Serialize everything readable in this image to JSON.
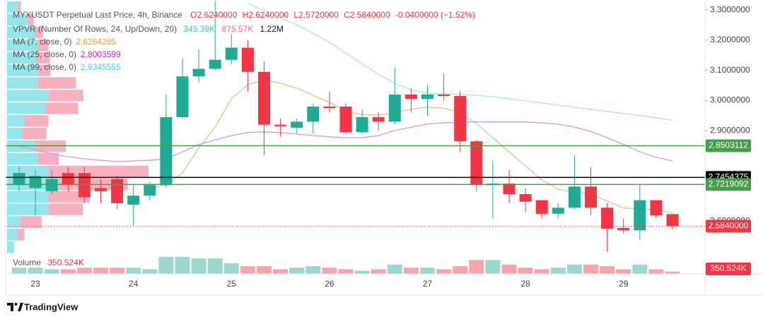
{
  "chart_data": {
    "type": "candlestick",
    "title": "MYXUSDT Perpetual Last Price, 4h, Binance",
    "ohlc_labels": [
      "O2.6240000",
      "H2.6240000",
      "L2.5720000",
      "C2.5840000",
      "-0.0400000 (−1.52%)"
    ],
    "categories": [
      null,
      "23",
      null,
      null,
      null,
      null,
      null,
      "24",
      null,
      null,
      null,
      null,
      null,
      "25",
      null,
      null,
      null,
      null,
      null,
      "26",
      null,
      null,
      null,
      null,
      null,
      "27",
      null,
      null,
      null,
      null,
      null,
      "28",
      null,
      null,
      null,
      null,
      null,
      "29",
      null,
      null,
      null
    ],
    "open": [
      2.72,
      2.71,
      2.7,
      2.76,
      2.76,
      2.71,
      2.74,
      2.655,
      2.685,
      2.72,
      2.945,
      3.08,
      3.105,
      3.135,
      3.175,
      3.095,
      2.92,
      2.91,
      2.93,
      2.98,
      2.98,
      2.895,
      2.945,
      2.93,
      3.02,
      3.005,
      3.02,
      3.015,
      2.865,
      2.72,
      2.725,
      2.69,
      2.67,
      2.625,
      2.645,
      2.715,
      2.645,
      2.578,
      2.57,
      2.67,
      2.624
    ],
    "high": [
      2.78,
      2.77,
      2.77,
      2.78,
      2.78,
      2.74,
      2.75,
      2.72,
      2.73,
      3.02,
      3.14,
      3.17,
      3.33,
      3.22,
      3.2,
      3.13,
      2.94,
      2.94,
      2.99,
      3.03,
      2.99,
      2.97,
      2.96,
      3.11,
      3.04,
      3.05,
      3.09,
      3.03,
      2.87,
      2.8,
      2.77,
      2.71,
      2.67,
      2.66,
      2.82,
      2.78,
      2.66,
      2.61,
      2.72,
      2.67,
      2.624
    ],
    "low": [
      2.7,
      2.62,
      2.69,
      2.7,
      2.66,
      2.66,
      2.64,
      2.585,
      2.67,
      2.71,
      2.94,
      3.06,
      3.1,
      3.12,
      3.03,
      2.82,
      2.88,
      2.89,
      2.89,
      2.96,
      2.89,
      2.89,
      2.9,
      2.92,
      2.96,
      2.95,
      3.0,
      2.83,
      2.7,
      2.61,
      2.66,
      2.63,
      2.61,
      2.61,
      2.64,
      2.62,
      2.5,
      2.56,
      2.54,
      2.61,
      2.572
    ],
    "close": [
      2.76,
      2.75,
      2.74,
      2.72,
      2.68,
      2.7,
      2.66,
      2.685,
      2.72,
      2.945,
      3.08,
      3.105,
      3.135,
      3.175,
      3.095,
      2.92,
      2.915,
      2.93,
      2.98,
      2.975,
      2.895,
      2.945,
      2.93,
      3.02,
      3.005,
      3.02,
      3.015,
      2.865,
      2.72,
      2.725,
      2.69,
      2.665,
      2.625,
      2.645,
      2.715,
      2.645,
      2.575,
      2.57,
      2.67,
      2.62,
      2.584
    ],
    "up_color": "#22ab94",
    "down_color": "#f23645",
    "ylim": [
      2.426,
      3.333
    ],
    "yticks": [
      {
        "value": 3.3,
        "label": "3.3000000"
      },
      {
        "value": 3.2,
        "label": "3.2000000"
      },
      {
        "value": 3.1,
        "label": "3.1000000"
      },
      {
        "value": 3.0,
        "label": "3.0000000"
      },
      {
        "value": 2.9,
        "label": "2.9000000"
      },
      {
        "value": 2.6,
        "label": "2.6000000"
      }
    ],
    "grid": false,
    "volume": {
      "name": "Volume",
      "value_label": "350.524K",
      "values": [
        936,
        936,
        702,
        702,
        936,
        936,
        936,
        936,
        702,
        2574,
        2574,
        2340,
        2340,
        1638,
        1170,
        1170,
        702,
        936,
        1170,
        936,
        702,
        468,
        702,
        1404,
        936,
        936,
        702,
        1170,
        2106,
        2106,
        1404,
        936,
        702,
        936,
        1404,
        1404,
        1170,
        702,
        1404,
        702,
        350.524
      ]
    },
    "indicators": [
      {
        "name": "MA (7, close, 0)",
        "value_label": "2.6284285",
        "color": "#e8a33d",
        "line_color": "#e6c08a",
        "values": [
          null,
          null,
          null,
          null,
          null,
          null,
          null,
          null,
          2.707,
          2.721,
          2.76,
          2.842,
          2.912,
          3.006,
          3.052,
          3.069,
          3.057,
          3.041,
          3.017,
          2.994,
          2.964,
          2.954,
          2.952,
          2.959,
          2.971,
          2.978,
          2.975,
          2.959,
          2.924,
          2.877,
          2.83,
          2.784,
          2.737,
          2.707,
          2.695,
          2.69,
          2.667,
          2.644,
          2.641,
          2.639,
          2.628
        ]
      },
      {
        "name": "MA (25, close, 0)",
        "value_label": "2.8003599",
        "color": "#d41fd4",
        "line_color": "#dc95e2",
        "values": [
          2.849,
          2.837,
          2.823,
          2.814,
          2.807,
          2.802,
          2.798,
          2.8,
          2.802,
          2.807,
          2.83,
          2.854,
          2.87,
          2.884,
          2.894,
          2.896,
          2.894,
          2.889,
          2.884,
          2.88,
          2.877,
          2.877,
          2.884,
          2.901,
          2.912,
          2.922,
          2.926,
          2.929,
          2.929,
          2.929,
          2.929,
          2.929,
          2.926,
          2.922,
          2.912,
          2.898,
          2.877,
          2.854,
          2.83,
          2.812,
          2.8
        ]
      },
      {
        "name": "MA (99, close, 0)",
        "value_label": "2.9345555",
        "color": "#3fd6dc",
        "line_color": "#a9e7ee",
        "values": [
          null,
          null,
          null,
          null,
          null,
          null,
          null,
          null,
          null,
          null,
          null,
          null,
          null,
          null,
          3.321,
          3.298,
          3.274,
          3.251,
          3.223,
          3.193,
          3.158,
          3.122,
          3.087,
          3.057,
          3.036,
          3.024,
          3.022,
          3.02,
          3.017,
          3.013,
          3.006,
          2.999,
          2.992,
          2.985,
          2.978,
          2.971,
          2.964,
          2.957,
          2.95,
          2.943,
          2.935
        ]
      }
    ],
    "price_lines": [
      {
        "value": 2.8503112,
        "label": "2.8503112",
        "color": "#43a047",
        "style": "solid"
      },
      {
        "value": 2.7454375,
        "label": "2.7454375",
        "color": "#000000",
        "style": "solid"
      },
      {
        "value": 2.7219092,
        "label": "2.7219092",
        "color": "#43a047",
        "style": "solid"
      },
      {
        "value": 2.584,
        "label": "2.5840000",
        "color": "#f23645",
        "style": "dotted"
      }
    ],
    "vpvr": {
      "name": "VPVR (Number Of Rows, 24, Up/Down, 20)",
      "stats": [
        "345.39K",
        "875.57K",
        "1.22M"
      ],
      "up_color": "#4fd3df",
      "down_color": "#f2708a",
      "up": [
        90,
        180,
        240,
        270,
        252,
        270,
        270,
        360,
        330,
        150,
        132,
        240,
        270,
        360,
        450,
        360,
        360,
        120,
        90,
        60
      ],
      "down": [
        30,
        48,
        72,
        90,
        120,
        108,
        330,
        300,
        288,
        210,
        210,
        270,
        180,
        870,
        600,
        360,
        300,
        180,
        60,
        0
      ]
    }
  },
  "brand": "TradingView"
}
